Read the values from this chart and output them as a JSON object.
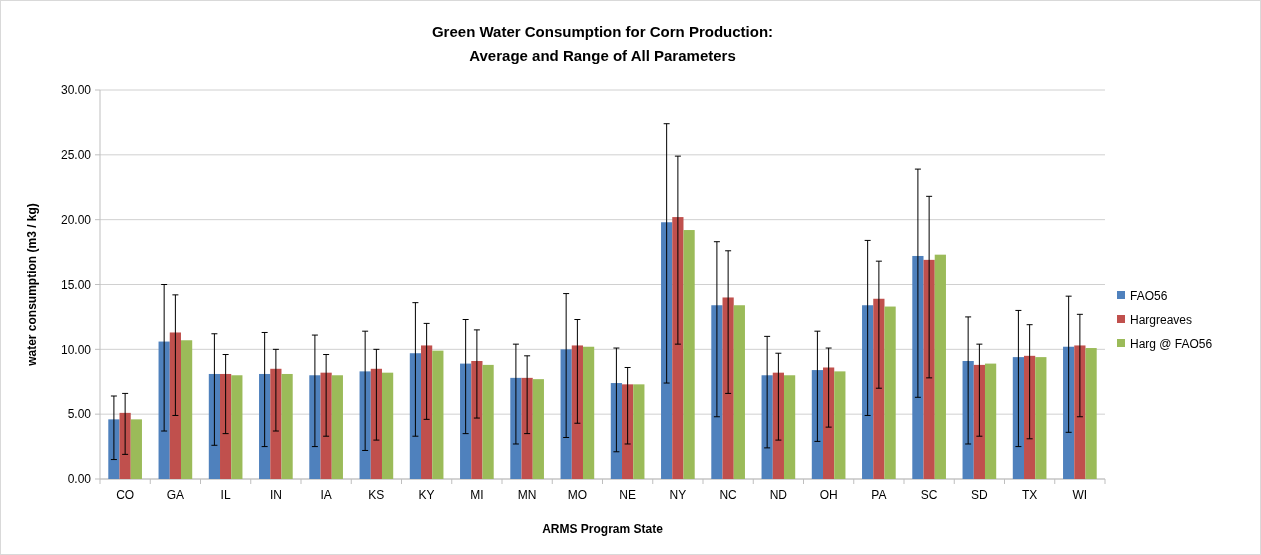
{
  "chart_data": {
    "type": "bar",
    "title": "Green Water Consumption  for Corn Production:\nAverage and Range of All Parameters",
    "xlabel": "ARMS Program State",
    "ylabel": "water consumption (m3 / kg)",
    "categories": [
      "CO",
      "GA",
      "IL",
      "IN",
      "IA",
      "KS",
      "KY",
      "MI",
      "MN",
      "MO",
      "NE",
      "NY",
      "NC",
      "ND",
      "OH",
      "PA",
      "SC",
      "SD",
      "TX",
      "WI"
    ],
    "series": [
      {
        "name": "FAO56",
        "color": "#4f81bd",
        "values": [
          4.6,
          10.6,
          8.1,
          8.1,
          8.0,
          8.3,
          9.7,
          8.9,
          7.8,
          10.0,
          7.4,
          19.8,
          13.4,
          8.0,
          8.4,
          13.4,
          17.2,
          9.1,
          9.4,
          10.2
        ],
        "errors": [
          [
            1.5,
            6.4
          ],
          [
            3.7,
            15.0
          ],
          [
            2.6,
            11.2
          ],
          [
            2.5,
            11.3
          ],
          [
            2.5,
            11.1
          ],
          [
            2.2,
            11.4
          ],
          [
            3.3,
            13.6
          ],
          [
            3.5,
            12.3
          ],
          [
            2.7,
            10.4
          ],
          [
            3.2,
            14.3
          ],
          [
            2.1,
            10.1
          ],
          [
            7.4,
            27.4
          ],
          [
            4.8,
            18.3
          ],
          [
            2.4,
            11.0
          ],
          [
            2.9,
            11.4
          ],
          [
            4.9,
            18.4
          ],
          [
            6.3,
            23.9
          ],
          [
            2.7,
            12.5
          ],
          [
            2.5,
            13.0
          ],
          [
            3.6,
            14.1
          ]
        ]
      },
      {
        "name": "Hargreaves",
        "color": "#c0504d",
        "values": [
          5.1,
          11.3,
          8.1,
          8.5,
          8.2,
          8.5,
          10.3,
          9.1,
          7.8,
          10.3,
          7.3,
          20.2,
          14.0,
          8.2,
          8.6,
          13.9,
          16.9,
          8.8,
          9.5,
          10.3
        ],
        "errors": [
          [
            1.9,
            6.6
          ],
          [
            4.9,
            14.2
          ],
          [
            3.5,
            9.6
          ],
          [
            3.7,
            10.0
          ],
          [
            3.3,
            9.6
          ],
          [
            3.0,
            10.0
          ],
          [
            4.6,
            12.0
          ],
          [
            4.7,
            11.5
          ],
          [
            3.5,
            9.5
          ],
          [
            4.3,
            12.3
          ],
          [
            2.7,
            8.6
          ],
          [
            10.4,
            24.9
          ],
          [
            6.6,
            17.6
          ],
          [
            3.0,
            9.7
          ],
          [
            4.0,
            10.1
          ],
          [
            7.0,
            16.8
          ],
          [
            7.8,
            21.8
          ],
          [
            3.3,
            10.4
          ],
          [
            3.1,
            11.9
          ],
          [
            4.8,
            12.7
          ]
        ]
      },
      {
        "name": "Harg @ FAO56",
        "color": "#9bbb59",
        "values": [
          4.6,
          10.7,
          8.0,
          8.1,
          8.0,
          8.2,
          9.9,
          8.8,
          7.7,
          10.2,
          7.3,
          19.2,
          13.4,
          8.0,
          8.3,
          13.3,
          17.3,
          8.9,
          9.4,
          10.1
        ]
      }
    ],
    "ylim": [
      0,
      30
    ],
    "yticks": [
      {
        "value": 0,
        "label": "0.00"
      },
      {
        "value": 5,
        "label": "5.00"
      },
      {
        "value": 10,
        "label": "10.00"
      },
      {
        "value": 15,
        "label": "15.00"
      },
      {
        "value": 20,
        "label": "20.00"
      },
      {
        "value": 25,
        "label": "25.00"
      },
      {
        "value": 30,
        "label": "30.00"
      }
    ],
    "grid": "y",
    "legend": "right"
  }
}
